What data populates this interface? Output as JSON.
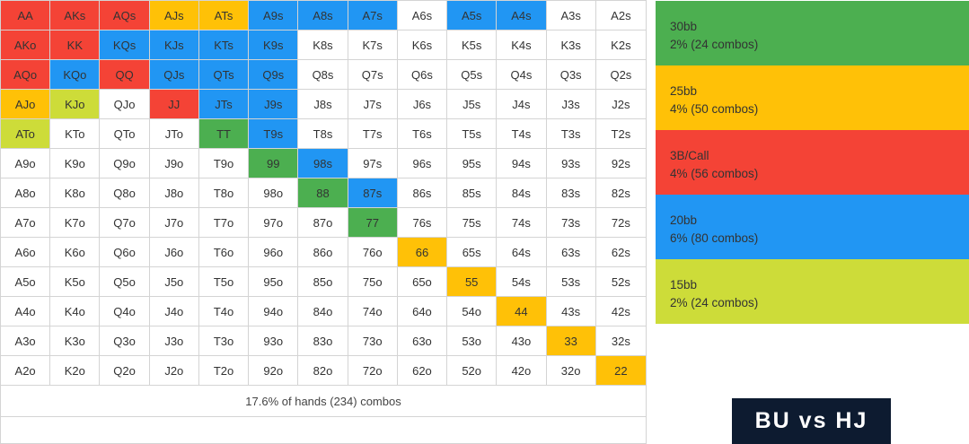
{
  "chart_data": {
    "type": "table",
    "colors": {
      "30bb": "#4caf50",
      "25bb": "#ffc107",
      "3b": "#f44336",
      "20bb": "#2196f3",
      "15bb": "#cddc39",
      "none": "#ffffff"
    },
    "rows": [
      [
        [
          "AA",
          "3b"
        ],
        [
          "AKs",
          "3b"
        ],
        [
          "AQs",
          "3b"
        ],
        [
          "AJs",
          "25bb"
        ],
        [
          "ATs",
          "25bb"
        ],
        [
          "A9s",
          "20bb"
        ],
        [
          "A8s",
          "20bb"
        ],
        [
          "A7s",
          "20bb"
        ],
        [
          "A6s",
          "none"
        ],
        [
          "A5s",
          "20bb"
        ],
        [
          "A4s",
          "20bb"
        ],
        [
          "A3s",
          "none"
        ],
        [
          "A2s",
          "none"
        ]
      ],
      [
        [
          "AKo",
          "3b"
        ],
        [
          "KK",
          "3b"
        ],
        [
          "KQs",
          "20bb"
        ],
        [
          "KJs",
          "20bb"
        ],
        [
          "KTs",
          "20bb"
        ],
        [
          "K9s",
          "20bb"
        ],
        [
          "K8s",
          "none"
        ],
        [
          "K7s",
          "none"
        ],
        [
          "K6s",
          "none"
        ],
        [
          "K5s",
          "none"
        ],
        [
          "K4s",
          "none"
        ],
        [
          "K3s",
          "none"
        ],
        [
          "K2s",
          "none"
        ]
      ],
      [
        [
          "AQo",
          "3b"
        ],
        [
          "KQo",
          "20bb"
        ],
        [
          "QQ",
          "3b"
        ],
        [
          "QJs",
          "20bb"
        ],
        [
          "QTs",
          "20bb"
        ],
        [
          "Q9s",
          "20bb"
        ],
        [
          "Q8s",
          "none"
        ],
        [
          "Q7s",
          "none"
        ],
        [
          "Q6s",
          "none"
        ],
        [
          "Q5s",
          "none"
        ],
        [
          "Q4s",
          "none"
        ],
        [
          "Q3s",
          "none"
        ],
        [
          "Q2s",
          "none"
        ]
      ],
      [
        [
          "AJo",
          "25bb"
        ],
        [
          "KJo",
          "15bb"
        ],
        [
          "QJo",
          "none"
        ],
        [
          "JJ",
          "3b"
        ],
        [
          "JTs",
          "20bb"
        ],
        [
          "J9s",
          "20bb"
        ],
        [
          "J8s",
          "none"
        ],
        [
          "J7s",
          "none"
        ],
        [
          "J6s",
          "none"
        ],
        [
          "J5s",
          "none"
        ],
        [
          "J4s",
          "none"
        ],
        [
          "J3s",
          "none"
        ],
        [
          "J2s",
          "none"
        ]
      ],
      [
        [
          "ATo",
          "15bb"
        ],
        [
          "KTo",
          "none"
        ],
        [
          "QTo",
          "none"
        ],
        [
          "JTo",
          "none"
        ],
        [
          "TT",
          "30bb"
        ],
        [
          "T9s",
          "20bb"
        ],
        [
          "T8s",
          "none"
        ],
        [
          "T7s",
          "none"
        ],
        [
          "T6s",
          "none"
        ],
        [
          "T5s",
          "none"
        ],
        [
          "T4s",
          "none"
        ],
        [
          "T3s",
          "none"
        ],
        [
          "T2s",
          "none"
        ]
      ],
      [
        [
          "A9o",
          "none"
        ],
        [
          "K9o",
          "none"
        ],
        [
          "Q9o",
          "none"
        ],
        [
          "J9o",
          "none"
        ],
        [
          "T9o",
          "none"
        ],
        [
          "99",
          "30bb"
        ],
        [
          "98s",
          "20bb"
        ],
        [
          "97s",
          "none"
        ],
        [
          "96s",
          "none"
        ],
        [
          "95s",
          "none"
        ],
        [
          "94s",
          "none"
        ],
        [
          "93s",
          "none"
        ],
        [
          "92s",
          "none"
        ]
      ],
      [
        [
          "A8o",
          "none"
        ],
        [
          "K8o",
          "none"
        ],
        [
          "Q8o",
          "none"
        ],
        [
          "J8o",
          "none"
        ],
        [
          "T8o",
          "none"
        ],
        [
          "98o",
          "none"
        ],
        [
          "88",
          "30bb"
        ],
        [
          "87s",
          "20bb"
        ],
        [
          "86s",
          "none"
        ],
        [
          "85s",
          "none"
        ],
        [
          "84s",
          "none"
        ],
        [
          "83s",
          "none"
        ],
        [
          "82s",
          "none"
        ]
      ],
      [
        [
          "A7o",
          "none"
        ],
        [
          "K7o",
          "none"
        ],
        [
          "Q7o",
          "none"
        ],
        [
          "J7o",
          "none"
        ],
        [
          "T7o",
          "none"
        ],
        [
          "97o",
          "none"
        ],
        [
          "87o",
          "none"
        ],
        [
          "77",
          "30bb"
        ],
        [
          "76s",
          "none"
        ],
        [
          "75s",
          "none"
        ],
        [
          "74s",
          "none"
        ],
        [
          "73s",
          "none"
        ],
        [
          "72s",
          "none"
        ]
      ],
      [
        [
          "A6o",
          "none"
        ],
        [
          "K6o",
          "none"
        ],
        [
          "Q6o",
          "none"
        ],
        [
          "J6o",
          "none"
        ],
        [
          "T6o",
          "none"
        ],
        [
          "96o",
          "none"
        ],
        [
          "86o",
          "none"
        ],
        [
          "76o",
          "none"
        ],
        [
          "66",
          "25bb"
        ],
        [
          "65s",
          "none"
        ],
        [
          "64s",
          "none"
        ],
        [
          "63s",
          "none"
        ],
        [
          "62s",
          "none"
        ]
      ],
      [
        [
          "A5o",
          "none"
        ],
        [
          "K5o",
          "none"
        ],
        [
          "Q5o",
          "none"
        ],
        [
          "J5o",
          "none"
        ],
        [
          "T5o",
          "none"
        ],
        [
          "95o",
          "none"
        ],
        [
          "85o",
          "none"
        ],
        [
          "75o",
          "none"
        ],
        [
          "65o",
          "none"
        ],
        [
          "55",
          "25bb"
        ],
        [
          "54s",
          "none"
        ],
        [
          "53s",
          "none"
        ],
        [
          "52s",
          "none"
        ]
      ],
      [
        [
          "A4o",
          "none"
        ],
        [
          "K4o",
          "none"
        ],
        [
          "Q4o",
          "none"
        ],
        [
          "J4o",
          "none"
        ],
        [
          "T4o",
          "none"
        ],
        [
          "94o",
          "none"
        ],
        [
          "84o",
          "none"
        ],
        [
          "74o",
          "none"
        ],
        [
          "64o",
          "none"
        ],
        [
          "54o",
          "none"
        ],
        [
          "44",
          "25bb"
        ],
        [
          "43s",
          "none"
        ],
        [
          "42s",
          "none"
        ]
      ],
      [
        [
          "A3o",
          "none"
        ],
        [
          "K3o",
          "none"
        ],
        [
          "Q3o",
          "none"
        ],
        [
          "J3o",
          "none"
        ],
        [
          "T3o",
          "none"
        ],
        [
          "93o",
          "none"
        ],
        [
          "83o",
          "none"
        ],
        [
          "73o",
          "none"
        ],
        [
          "63o",
          "none"
        ],
        [
          "53o",
          "none"
        ],
        [
          "43o",
          "none"
        ],
        [
          "33",
          "25bb"
        ],
        [
          "32s",
          "none"
        ]
      ],
      [
        [
          "A2o",
          "none"
        ],
        [
          "K2o",
          "none"
        ],
        [
          "Q2o",
          "none"
        ],
        [
          "J2o",
          "none"
        ],
        [
          "T2o",
          "none"
        ],
        [
          "92o",
          "none"
        ],
        [
          "82o",
          "none"
        ],
        [
          "72o",
          "none"
        ],
        [
          "62o",
          "none"
        ],
        [
          "52o",
          "none"
        ],
        [
          "42o",
          "none"
        ],
        [
          "32o",
          "none"
        ],
        [
          "22",
          "25bb"
        ]
      ]
    ],
    "summary": "17.6% of hands (234) combos",
    "legend": [
      {
        "key": "30bb",
        "label": "30bb",
        "detail": "2% (24 combos)"
      },
      {
        "key": "25bb",
        "label": "25bb",
        "detail": "4% (50 combos)"
      },
      {
        "key": "3b",
        "label": "3B/Call",
        "detail": "4% (56 combos)"
      },
      {
        "key": "20bb",
        "label": "20bb",
        "detail": "6% (80 combos)"
      },
      {
        "key": "15bb",
        "label": "15bb",
        "detail": "2% (24 combos)"
      }
    ]
  },
  "badge": {
    "text": "BU vs HJ"
  }
}
